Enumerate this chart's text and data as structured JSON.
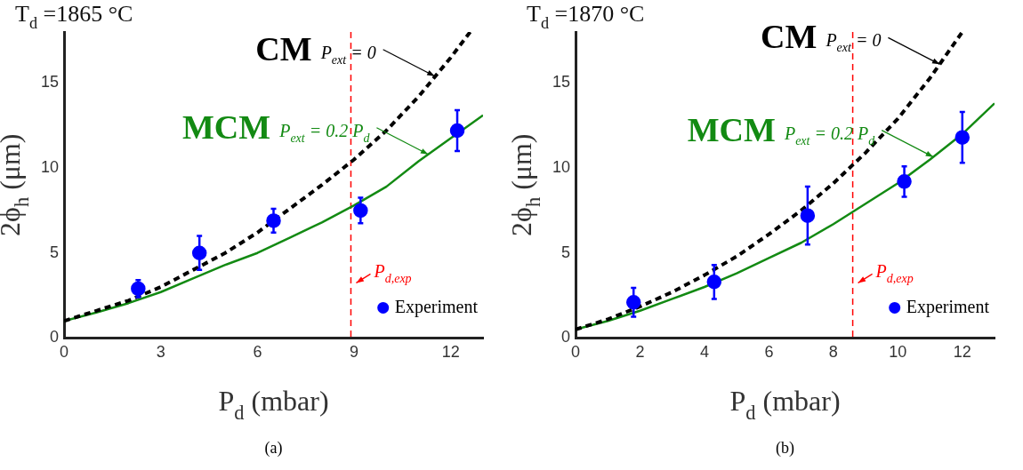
{
  "chart_data": [
    {
      "type": "line",
      "title": "T$_{d}$ =1865 °C",
      "xlabel": "P$_{d}$ (mbar)",
      "ylabel": "2ϕ$_{h}$ (μm)",
      "xlim": [
        0,
        13
      ],
      "ylim": [
        0,
        18
      ],
      "xticks": [
        0,
        3,
        6,
        9,
        12
      ],
      "yticks": [
        0,
        5,
        10,
        15
      ],
      "grid": false,
      "legend": "bottom right",
      "series": [
        {
          "name": "CM",
          "type": "line",
          "color": "#000000",
          "line_style": "dashed",
          "marker": "none",
          "x": [
            0,
            1,
            2,
            3,
            4,
            5,
            6,
            7,
            8,
            9,
            10,
            11,
            12,
            12.6
          ],
          "values": [
            1.0,
            1.6,
            2.2,
            3.0,
            4.0,
            5.0,
            6.2,
            7.6,
            9.0,
            10.5,
            12.2,
            14.2,
            16.5,
            18.0
          ]
        },
        {
          "name": "MCM",
          "type": "line",
          "color": "#138a13",
          "line_style": "solid",
          "marker": "none",
          "x": [
            0,
            1,
            2,
            3,
            4,
            5,
            6,
            7,
            8,
            9,
            10,
            11,
            12,
            13
          ],
          "values": [
            1.0,
            1.5,
            2.05,
            2.7,
            3.5,
            4.3,
            5.0,
            5.9,
            6.8,
            7.8,
            8.9,
            10.4,
            11.75,
            13.1
          ]
        },
        {
          "name": "Experiment",
          "type": "scatter",
          "color": "#0000ff",
          "marker": "circle",
          "x": [
            2.3,
            4.2,
            6.5,
            9.2,
            12.2
          ],
          "values": [
            2.9,
            5.0,
            6.9,
            7.5,
            12.2
          ],
          "errors": [
            0.5,
            1.0,
            0.7,
            0.75,
            1.2
          ]
        }
      ],
      "ref_lines": [
        {
          "axis": "x",
          "value": 8.9,
          "label": "P$_{d,exp}$",
          "color": "#ff0000",
          "line_style": "dashed"
        }
      ],
      "annotations": [
        "(a)",
        {
          "text": "P$_{ext}$ = 0",
          "x": 11.5,
          "y": 15.4
        },
        {
          "text": "P$_{ext}$ = 0.2 P$_{d}$",
          "x": 11.3,
          "y": 10.8
        }
      ]
    },
    {
      "type": "line",
      "title": "T$_{d}$ =1870 °C",
      "xlabel": "P$_{d}$ (mbar)",
      "ylabel": "2ϕ$_{h}$ (μm)",
      "xlim": [
        0,
        13
      ],
      "ylim": [
        0,
        18
      ],
      "xticks": [
        0,
        2,
        4,
        6,
        8,
        10,
        12
      ],
      "yticks": [
        0,
        5,
        10,
        15
      ],
      "grid": false,
      "legend": "bottom right",
      "series": [
        {
          "name": "CM",
          "type": "line",
          "color": "#000000",
          "line_style": "dashed",
          "marker": "none",
          "x": [
            0,
            1,
            2,
            3,
            4,
            5,
            6,
            7,
            8,
            9,
            10,
            11,
            12
          ],
          "values": [
            0.5,
            1.1,
            1.85,
            2.7,
            3.7,
            4.8,
            6.1,
            7.5,
            9.1,
            10.9,
            12.9,
            15.3,
            18.0
          ]
        },
        {
          "name": "MCM",
          "type": "line",
          "color": "#138a13",
          "line_style": "solid",
          "marker": "none",
          "x": [
            0,
            1,
            2,
            3,
            4,
            5,
            6,
            7,
            8,
            9,
            10,
            11,
            12,
            13
          ],
          "values": [
            0.5,
            1.0,
            1.6,
            2.3,
            3.0,
            3.8,
            4.7,
            5.6,
            6.7,
            7.9,
            9.1,
            10.5,
            12.0,
            13.8
          ]
        },
        {
          "name": "Experiment",
          "type": "scatter",
          "color": "#0000ff",
          "marker": "circle",
          "x": [
            1.8,
            4.3,
            7.2,
            10.2,
            12.0
          ],
          "values": [
            2.1,
            3.3,
            7.2,
            9.2,
            11.8
          ],
          "errors": [
            0.85,
            1.0,
            1.7,
            0.9,
            1.5
          ]
        }
      ],
      "ref_lines": [
        {
          "axis": "x",
          "value": 8.6,
          "label": "P$_{d,exp}$",
          "color": "#ff0000",
          "line_style": "dashed"
        }
      ],
      "annotations": [
        "(b)",
        {
          "text": "P$_{ext}$ = 0",
          "x": 11.3,
          "y": 16.1
        },
        {
          "text": "P$_{ext}$ = 0.2 P$_{d}$",
          "x": 11.1,
          "y": 10.65
        }
      ]
    }
  ]
}
